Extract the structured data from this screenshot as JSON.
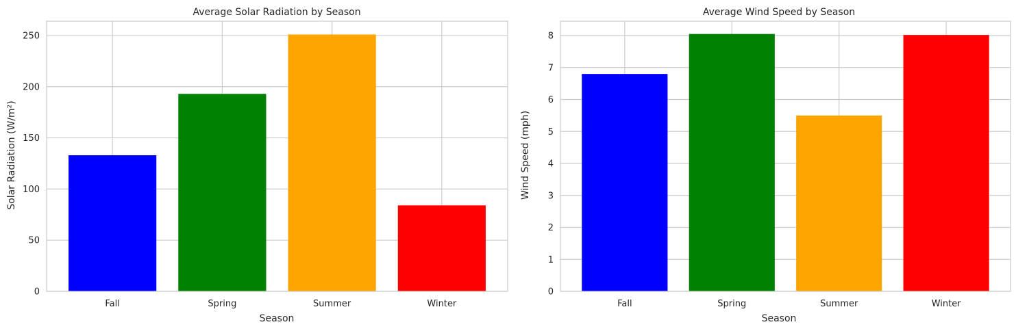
{
  "colors": {
    "grid": "#cccccc",
    "spine": "#cccccc",
    "text": "#262626"
  },
  "chart_data": [
    {
      "type": "bar",
      "title": "Average Solar Radiation by Season",
      "xlabel": "Season",
      "ylabel": "Solar Radiation (W/m²)",
      "categories": [
        "Fall",
        "Spring",
        "Summer",
        "Winter"
      ],
      "values": [
        133,
        193,
        251,
        84
      ],
      "bar_colors": [
        "#0000ff",
        "#008000",
        "#ffa500",
        "#ff0000"
      ],
      "ylim": [
        0,
        264
      ],
      "yticks": [
        0,
        50,
        100,
        150,
        200,
        250
      ],
      "ytick_labels": [
        "0",
        "50",
        "100",
        "150",
        "200",
        "250"
      ],
      "grid": true
    },
    {
      "type": "bar",
      "title": "Average Wind Speed by Season",
      "xlabel": "Season",
      "ylabel": "Wind Speed (mph)",
      "categories": [
        "Fall",
        "Spring",
        "Summer",
        "Winter"
      ],
      "values": [
        6.8,
        8.05,
        5.5,
        8.02
      ],
      "bar_colors": [
        "#0000ff",
        "#008000",
        "#ffa500",
        "#ff0000"
      ],
      "ylim": [
        0,
        8.45
      ],
      "yticks": [
        0,
        1,
        2,
        3,
        4,
        5,
        6,
        7,
        8
      ],
      "ytick_labels": [
        "0",
        "1",
        "2",
        "3",
        "4",
        "5",
        "6",
        "7",
        "8"
      ],
      "grid": true
    }
  ]
}
